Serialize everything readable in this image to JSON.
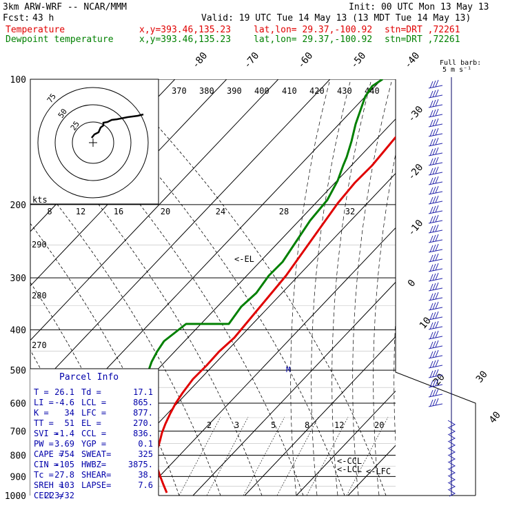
{
  "header": {
    "model": "3km ARW-WRF -- NCAR/MMM",
    "init": "Init: 00 UTC Mon 13 May 13",
    "fcst_label": "Fcst:",
    "fcst_value": "43 h",
    "valid": "Valid: 19 UTC Tue 14 May 13 (13 MDT Tue 14 May 13)",
    "temp_name": "Temperature",
    "dew_name": "Dewpoint temperature",
    "xy": "x,y=393.46,135.23",
    "latlon": "lat,lon= 29.37,-100.92",
    "stn": "stn=DRT ,72261"
  },
  "chart_data": {
    "type": "line",
    "series": [
      {
        "name": "Temperature",
        "color": "#e00000",
        "points": [
          [
            350,
            -55
          ],
          [
            335,
            -57
          ],
          [
            320,
            -60
          ],
          [
            300,
            -62
          ],
          [
            275,
            -62.5
          ],
          [
            250,
            -60
          ],
          [
            225,
            -57
          ],
          [
            200,
            -55
          ],
          [
            175,
            -50
          ],
          [
            150,
            -45
          ],
          [
            125,
            -40
          ],
          [
            100,
            -34
          ],
          [
            75,
            -28
          ],
          [
            50,
            -24
          ],
          [
            28,
            -21
          ],
          [
            10,
            -17
          ],
          [
            -10,
            -13
          ],
          [
            -25,
            -10
          ],
          [
            -35,
            -7
          ],
          [
            -43,
            -3
          ],
          [
            -50,
            1
          ],
          [
            -55,
            6
          ],
          [
            -58,
            10
          ],
          [
            -61,
            14
          ],
          [
            -64,
            18
          ],
          [
            -63,
            20
          ],
          [
            -58,
            22
          ],
          [
            -53,
            24
          ],
          [
            -48,
            26
          ]
        ]
      },
      {
        "name": "Dewpoint temperature",
        "color": "#008000",
        "points": [
          [
            265,
            -55
          ],
          [
            250,
            -57
          ],
          [
            240,
            -59
          ],
          [
            233,
            -61
          ],
          [
            226,
            -63
          ],
          [
            220,
            -66
          ],
          [
            213,
            -68
          ],
          [
            208,
            -70
          ],
          [
            200,
            -71
          ],
          [
            185,
            -73
          ],
          [
            160,
            -75
          ],
          [
            140,
            -77
          ],
          [
            120,
            -79
          ],
          [
            100,
            -81
          ],
          [
            82,
            -83
          ],
          [
            60,
            -85
          ],
          [
            42,
            -87
          ],
          [
            -20,
            -64
          ],
          [
            -52,
            -40
          ],
          [
            -62,
            -27
          ],
          [
            -70,
            -12
          ],
          [
            -77,
            -3
          ],
          [
            -82,
            2
          ],
          [
            -88,
            6
          ],
          [
            -93,
            10
          ],
          [
            -98,
            14
          ],
          [
            -103,
            17
          ],
          [
            -105,
            20
          ],
          [
            -102,
            22
          ],
          [
            -104,
            23
          ],
          [
            -108,
            25
          ]
        ]
      }
    ],
    "pressure_levels": [
      "100",
      "200",
      "300",
      "400",
      "500",
      "600",
      "700",
      "800",
      "900",
      "1000"
    ],
    "isotherm_labels": [
      "-80",
      "-70",
      "-60",
      "-50",
      "-40",
      "-30",
      "-20",
      "-10",
      "0",
      "10",
      "20",
      "30",
      "40"
    ],
    "theta_labels": [
      "270",
      "280",
      "290"
    ],
    "mixing_ratio_labels": [
      "2",
      "3",
      "5",
      "8",
      "12",
      "20"
    ],
    "hodo_speed_labels": [
      "8",
      "12",
      "16",
      "20",
      "24",
      "28",
      "32"
    ],
    "hodo_unit": "kts",
    "hodo_ring_labels": [
      "75",
      "50",
      "25"
    ],
    "theta_e_labels": [
      "370",
      "380",
      "390",
      "400",
      "410",
      "420",
      "430",
      "440"
    ],
    "annotations": {
      "el": "<-EL",
      "ccl": "<-CCL",
      "lcl": "<-LCL",
      "lfc": "<-LFC",
      "storm_motion": "M"
    },
    "barb_legend": "Full barb:",
    "barb_unit": "5 m s⁻¹"
  },
  "parcel": {
    "title": "Parcel Info",
    "rows": [
      [
        "T  =",
        "26.1",
        "Td =",
        "17.1"
      ],
      [
        "LI =",
        "-4.6",
        "LCL =",
        "865."
      ],
      [
        "K  =",
        "34",
        "LFC =",
        "877."
      ],
      [
        "TT =",
        "51",
        "EL  =",
        "270."
      ],
      [
        "SVI =",
        "-1.4",
        "CCL =",
        "836."
      ],
      [
        "PW =",
        "3.69",
        "YGP =",
        "0.1"
      ],
      [
        "CAPE =",
        "754",
        "SWEAT=",
        "325"
      ],
      [
        "CIN =",
        "-105",
        "HWBZ=",
        "3875."
      ],
      [
        "Tc =",
        "27.8",
        "SHEAR=",
        "38."
      ],
      [
        "SREH =",
        "103",
        "LAPSE=",
        "7.6"
      ],
      [
        "CELL =",
        "223/32",
        "",
        ""
      ]
    ]
  }
}
